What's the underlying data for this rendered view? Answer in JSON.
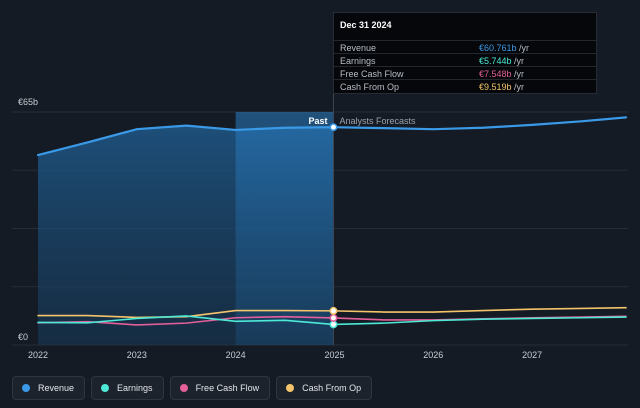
{
  "chart_data": {
    "type": "line",
    "y_axis": {
      "max_label": "€65b",
      "min_label": "€0",
      "ylim": [
        0,
        65
      ]
    },
    "x_ticks": [
      2022,
      2023,
      2024,
      2025,
      2026,
      2027
    ],
    "xlim": [
      2022,
      2027.95
    ],
    "divider_x": 2024.99,
    "highlight_range": [
      2024.0,
      2024.99
    ],
    "past_label": "Past",
    "forecast_label": "Analysts Forecasts",
    "series": [
      {
        "name": "Revenue",
        "color": "#3a9ae8",
        "points": [
          [
            2022.0,
            53.0
          ],
          [
            2022.5,
            56.5
          ],
          [
            2023.0,
            60.2
          ],
          [
            2023.5,
            61.2
          ],
          [
            2024.0,
            60.0
          ],
          [
            2024.5,
            60.6
          ],
          [
            2024.99,
            60.761
          ],
          [
            2025.5,
            60.5
          ],
          [
            2026.0,
            60.2
          ],
          [
            2026.5,
            60.6
          ],
          [
            2027.0,
            61.4
          ],
          [
            2027.5,
            62.4
          ],
          [
            2027.95,
            63.5
          ]
        ]
      },
      {
        "name": "Earnings",
        "color": "#4de8d6",
        "points": [
          [
            2022.0,
            6.3
          ],
          [
            2022.5,
            6.2
          ],
          [
            2023.0,
            7.4
          ],
          [
            2023.5,
            8.1
          ],
          [
            2024.0,
            6.6
          ],
          [
            2024.5,
            6.9
          ],
          [
            2024.99,
            5.744
          ],
          [
            2025.5,
            6.1
          ],
          [
            2026.0,
            6.8
          ],
          [
            2026.5,
            7.2
          ],
          [
            2027.0,
            7.4
          ],
          [
            2027.5,
            7.6
          ],
          [
            2027.95,
            7.8
          ]
        ]
      },
      {
        "name": "Free Cash Flow",
        "color": "#e45f9a",
        "points": [
          [
            2022.0,
            6.2
          ],
          [
            2022.5,
            6.5
          ],
          [
            2023.0,
            5.6
          ],
          [
            2023.5,
            6.1
          ],
          [
            2024.0,
            7.6
          ],
          [
            2024.5,
            7.9
          ],
          [
            2024.99,
            7.548
          ],
          [
            2025.5,
            7.0
          ],
          [
            2026.0,
            7.0
          ],
          [
            2026.5,
            7.3
          ],
          [
            2027.0,
            7.6
          ],
          [
            2027.5,
            7.8
          ],
          [
            2027.95,
            8.0
          ]
        ]
      },
      {
        "name": "Cash From Op",
        "color": "#f4c46b",
        "points": [
          [
            2022.0,
            8.2
          ],
          [
            2022.5,
            8.2
          ],
          [
            2023.0,
            7.7
          ],
          [
            2023.5,
            7.9
          ],
          [
            2024.0,
            9.6
          ],
          [
            2024.5,
            9.6
          ],
          [
            2024.99,
            9.519
          ],
          [
            2025.5,
            9.2
          ],
          [
            2026.0,
            9.2
          ],
          [
            2026.5,
            9.6
          ],
          [
            2027.0,
            10.0
          ],
          [
            2027.5,
            10.2
          ],
          [
            2027.95,
            10.4
          ]
        ]
      }
    ]
  },
  "tooltip": {
    "date": "Dec 31 2024",
    "rows": [
      {
        "label": "Revenue",
        "value": "€60.761b",
        "unit": " /yr",
        "color": "#3a9ae8"
      },
      {
        "label": "Earnings",
        "value": "€5.744b",
        "unit": " /yr",
        "color": "#4de8d6"
      },
      {
        "label": "Free Cash Flow",
        "value": "€7.548b",
        "unit": " /yr",
        "color": "#e45f9a"
      },
      {
        "label": "Cash From Op",
        "value": "€9.519b",
        "unit": " /yr",
        "color": "#f4c46b"
      }
    ]
  },
  "legend": [
    {
      "label": "Revenue",
      "color": "#3a9ae8"
    },
    {
      "label": "Earnings",
      "color": "#4de8d6"
    },
    {
      "label": "Free Cash Flow",
      "color": "#e45f9a"
    },
    {
      "label": "Cash From Op",
      "color": "#f4c46b"
    }
  ]
}
